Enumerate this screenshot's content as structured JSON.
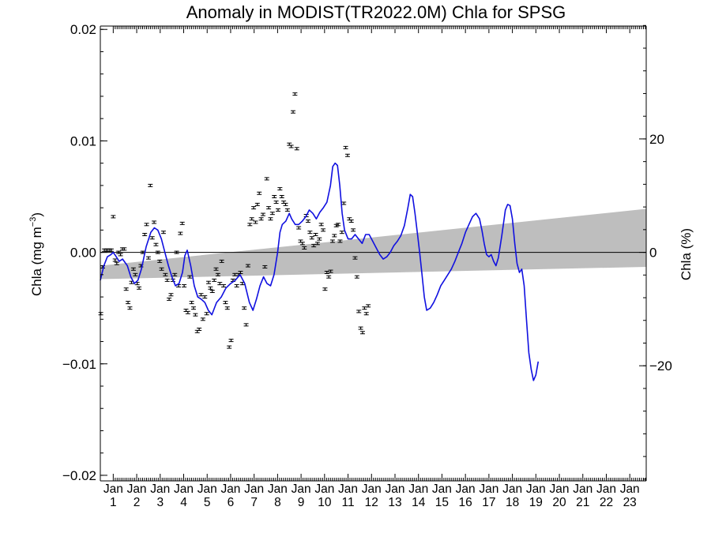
{
  "chart_data": {
    "type": "line",
    "title": "Anomaly in MODIST(TR2022.0M) Chla for SPSG",
    "ylabel_left": "Chla (mg m",
    "ylabel_left_sup": "−3",
    "ylabel_left_close": ")",
    "ylabel_right": "Chla (%)",
    "ylim": [
      -0.0205,
      0.0203
    ],
    "xlim": [
      0.45,
      23.7
    ],
    "right_ylim_percent": [
      -40.3,
      39.9
    ],
    "left_ticks": [
      {
        "v": 0.02,
        "label": "0.02"
      },
      {
        "v": 0.01,
        "label": "0.01"
      },
      {
        "v": 0.0,
        "label": "0.00"
      },
      {
        "v": -0.01,
        "label": "−0.01"
      },
      {
        "v": -0.02,
        "label": "−0.02"
      }
    ],
    "right_ticks": [
      {
        "v": 20,
        "label": "20"
      },
      {
        "v": 0,
        "label": "0"
      },
      {
        "v": -20,
        "label": "−20"
      }
    ],
    "x_month_label": "Jan",
    "x_year_labels": [
      "1",
      "2",
      "3",
      "4",
      "5",
      "6",
      "7",
      "8",
      "9",
      "10",
      "11",
      "12",
      "13",
      "14",
      "15",
      "16",
      "17",
      "18",
      "19",
      "20",
      "21",
      "22",
      "23"
    ],
    "zero_line": 0.0,
    "trend_band": {
      "x0": 0.45,
      "x1": 23.7,
      "lower0": -0.0024,
      "upper0": -0.0012,
      "lower1": -0.0013,
      "upper1": 0.0039
    },
    "colors": {
      "smooth_line": "#1010e0",
      "band": "#bebebe",
      "points": "#000000",
      "axes": "#000000"
    },
    "series": [
      {
        "kind": "smoothed",
        "points": [
          [
            0.45,
            -0.0025
          ],
          [
            0.6,
            -0.0012
          ],
          [
            0.75,
            -0.0004
          ],
          [
            0.9,
            -0.0002
          ],
          [
            1.0,
            0.0
          ],
          [
            1.1,
            -0.0003
          ],
          [
            1.25,
            -0.0008
          ],
          [
            1.4,
            -0.0006
          ],
          [
            1.6,
            -0.0012
          ],
          [
            1.75,
            -0.0022
          ],
          [
            1.9,
            -0.0028
          ],
          [
            2.05,
            -0.0025
          ],
          [
            2.2,
            -0.0015
          ],
          [
            2.4,
            0.0005
          ],
          [
            2.6,
            0.0018
          ],
          [
            2.75,
            0.0022
          ],
          [
            2.9,
            0.002
          ],
          [
            3.05,
            0.0012
          ],
          [
            3.2,
            0.0
          ],
          [
            3.35,
            -0.0012
          ],
          [
            3.5,
            -0.0022
          ],
          [
            3.65,
            -0.003
          ],
          [
            3.8,
            -0.0028
          ],
          [
            3.95,
            -0.0018
          ],
          [
            4.05,
            -0.0003
          ],
          [
            4.15,
            0.0002
          ],
          [
            4.3,
            -0.0012
          ],
          [
            4.45,
            -0.003
          ],
          [
            4.6,
            -0.004
          ],
          [
            4.75,
            -0.0042
          ],
          [
            4.9,
            -0.0045
          ],
          [
            5.05,
            -0.0052
          ],
          [
            5.2,
            -0.0056
          ],
          [
            5.4,
            -0.0045
          ],
          [
            5.6,
            -0.004
          ],
          [
            5.8,
            -0.0032
          ],
          [
            6.0,
            -0.0028
          ],
          [
            6.2,
            -0.0025
          ],
          [
            6.4,
            -0.002
          ],
          [
            6.6,
            -0.0028
          ],
          [
            6.8,
            -0.0045
          ],
          [
            6.95,
            -0.0052
          ],
          [
            7.1,
            -0.0042
          ],
          [
            7.25,
            -0.003
          ],
          [
            7.4,
            -0.0022
          ],
          [
            7.55,
            -0.0028
          ],
          [
            7.7,
            -0.003
          ],
          [
            7.85,
            -0.002
          ],
          [
            8.0,
            0.0
          ],
          [
            8.1,
            0.0018
          ],
          [
            8.2,
            0.0025
          ],
          [
            8.35,
            0.0028
          ],
          [
            8.5,
            0.0035
          ],
          [
            8.6,
            0.003
          ],
          [
            8.75,
            0.0025
          ],
          [
            8.9,
            0.0025
          ],
          [
            9.05,
            0.0028
          ],
          [
            9.2,
            0.0032
          ],
          [
            9.35,
            0.0038
          ],
          [
            9.5,
            0.0035
          ],
          [
            9.65,
            0.003
          ],
          [
            9.8,
            0.0036
          ],
          [
            9.95,
            0.004
          ],
          [
            10.1,
            0.0045
          ],
          [
            10.25,
            0.006
          ],
          [
            10.35,
            0.0077
          ],
          [
            10.45,
            0.008
          ],
          [
            10.55,
            0.0078
          ],
          [
            10.65,
            0.006
          ],
          [
            10.75,
            0.0035
          ],
          [
            10.85,
            0.002
          ],
          [
            11.0,
            0.0012
          ],
          [
            11.15,
            0.0012
          ],
          [
            11.3,
            0.0016
          ],
          [
            11.45,
            0.0012
          ],
          [
            11.6,
            0.0008
          ],
          [
            11.75,
            0.0016
          ],
          [
            11.9,
            0.0016
          ],
          [
            12.05,
            0.001
          ],
          [
            12.2,
            0.0004
          ],
          [
            12.35,
            -0.0002
          ],
          [
            12.5,
            -0.0006
          ],
          [
            12.65,
            -0.0004
          ],
          [
            12.8,
            0.0
          ],
          [
            12.95,
            0.0006
          ],
          [
            13.1,
            0.001
          ],
          [
            13.25,
            0.0015
          ],
          [
            13.4,
            0.0024
          ],
          [
            13.55,
            0.004
          ],
          [
            13.65,
            0.0052
          ],
          [
            13.75,
            0.005
          ],
          [
            13.85,
            0.0035
          ],
          [
            13.95,
            0.0018
          ],
          [
            14.05,
            0.0
          ],
          [
            14.15,
            -0.002
          ],
          [
            14.25,
            -0.004
          ],
          [
            14.35,
            -0.0052
          ],
          [
            14.5,
            -0.005
          ],
          [
            14.65,
            -0.0045
          ],
          [
            14.8,
            -0.0038
          ],
          [
            14.95,
            -0.003
          ],
          [
            15.1,
            -0.0025
          ],
          [
            15.25,
            -0.002
          ],
          [
            15.4,
            -0.0015
          ],
          [
            15.55,
            -0.0008
          ],
          [
            15.7,
            0.0
          ],
          [
            15.85,
            0.0008
          ],
          [
            16.0,
            0.0018
          ],
          [
            16.15,
            0.0025
          ],
          [
            16.3,
            0.0032
          ],
          [
            16.45,
            0.0035
          ],
          [
            16.6,
            0.003
          ],
          [
            16.7,
            0.002
          ],
          [
            16.8,
            0.0008
          ],
          [
            16.9,
            -0.0002
          ],
          [
            17.0,
            -0.0004
          ],
          [
            17.1,
            -0.0002
          ],
          [
            17.2,
            -0.0008
          ],
          [
            17.3,
            -0.0012
          ],
          [
            17.4,
            -0.0005
          ],
          [
            17.55,
            0.0015
          ],
          [
            17.7,
            0.0038
          ],
          [
            17.8,
            0.0043
          ],
          [
            17.9,
            0.0042
          ],
          [
            18.0,
            0.003
          ],
          [
            18.1,
            0.0008
          ],
          [
            18.2,
            -0.001
          ],
          [
            18.3,
            -0.0018
          ],
          [
            18.4,
            -0.0015
          ],
          [
            18.5,
            -0.003
          ],
          [
            18.6,
            -0.006
          ],
          [
            18.7,
            -0.009
          ],
          [
            18.8,
            -0.0105
          ],
          [
            18.9,
            -0.0115
          ],
          [
            19.0,
            -0.011
          ],
          [
            19.1,
            -0.0098
          ]
        ]
      },
      {
        "kind": "monthly_points",
        "points": [
          [
            0.47,
            -0.0055
          ],
          [
            0.55,
            -0.0013
          ],
          [
            0.62,
            0.0002
          ],
          [
            0.7,
            0.0002
          ],
          [
            0.77,
            0.0002
          ],
          [
            0.85,
            0.0002
          ],
          [
            0.92,
            0.0002
          ],
          [
            1.0,
            0.0032
          ],
          [
            1.08,
            -0.0007
          ],
          [
            1.15,
            -0.001
          ],
          [
            1.23,
            0.0
          ],
          [
            1.31,
            -0.0002
          ],
          [
            1.39,
            0.0003
          ],
          [
            1.47,
            0.0003
          ],
          [
            1.55,
            -0.0033
          ],
          [
            1.63,
            -0.0045
          ],
          [
            1.71,
            -0.005
          ],
          [
            1.78,
            -0.0027
          ],
          [
            1.86,
            -0.0015
          ],
          [
            1.94,
            -0.002
          ],
          [
            2.02,
            -0.0028
          ],
          [
            2.1,
            -0.0032
          ],
          [
            2.18,
            -0.0012
          ],
          [
            2.26,
            0.0
          ],
          [
            2.34,
            0.0016
          ],
          [
            2.42,
            0.0025
          ],
          [
            2.5,
            -0.0005
          ],
          [
            2.58,
            0.006
          ],
          [
            2.66,
            0.0013
          ],
          [
            2.74,
            0.0027
          ],
          [
            2.82,
            0.0007
          ],
          [
            2.9,
            0.0
          ],
          [
            2.98,
            -0.0008
          ],
          [
            3.06,
            -0.0015
          ],
          [
            3.14,
            0.0018
          ],
          [
            3.22,
            -0.002
          ],
          [
            3.3,
            -0.0025
          ],
          [
            3.38,
            -0.0042
          ],
          [
            3.46,
            -0.0038
          ],
          [
            3.54,
            -0.0025
          ],
          [
            3.62,
            -0.002
          ],
          [
            3.7,
            0.0
          ],
          [
            3.78,
            -0.003
          ],
          [
            3.86,
            0.0017
          ],
          [
            3.94,
            0.0026
          ],
          [
            4.02,
            -0.003
          ],
          [
            4.1,
            -0.0052
          ],
          [
            4.18,
            -0.0054
          ],
          [
            4.26,
            -0.0022
          ],
          [
            4.34,
            -0.0045
          ],
          [
            4.42,
            -0.005
          ],
          [
            4.5,
            -0.0056
          ],
          [
            4.58,
            -0.0071
          ],
          [
            4.66,
            -0.0069
          ],
          [
            4.74,
            -0.0038
          ],
          [
            4.82,
            -0.006
          ],
          [
            4.9,
            -0.004
          ],
          [
            4.98,
            -0.0055
          ],
          [
            5.06,
            -0.0027
          ],
          [
            5.14,
            -0.0032
          ],
          [
            5.22,
            -0.0035
          ],
          [
            5.3,
            -0.0025
          ],
          [
            5.38,
            -0.0015
          ],
          [
            5.46,
            -0.002
          ],
          [
            5.54,
            -0.0028
          ],
          [
            5.62,
            -0.0008
          ],
          [
            5.7,
            -0.003
          ],
          [
            5.78,
            -0.0045
          ],
          [
            5.86,
            -0.005
          ],
          [
            5.94,
            -0.0085
          ],
          [
            6.02,
            -0.0079
          ],
          [
            6.1,
            -0.0025
          ],
          [
            6.18,
            -0.002
          ],
          [
            6.26,
            -0.003
          ],
          [
            6.34,
            -0.002
          ],
          [
            6.42,
            -0.0018
          ],
          [
            6.5,
            -0.0028
          ],
          [
            6.58,
            -0.005
          ],
          [
            6.66,
            -0.0065
          ],
          [
            6.74,
            -0.0012
          ],
          [
            6.82,
            0.0025
          ],
          [
            6.9,
            0.003
          ],
          [
            6.98,
            0.004
          ],
          [
            7.06,
            0.0027
          ],
          [
            7.14,
            0.0043
          ],
          [
            7.22,
            0.0053
          ],
          [
            7.3,
            0.003
          ],
          [
            7.38,
            0.0034
          ],
          [
            7.46,
            -0.0013
          ],
          [
            7.54,
            0.0066
          ],
          [
            7.62,
            0.004
          ],
          [
            7.7,
            0.003
          ],
          [
            7.78,
            0.0035
          ],
          [
            7.86,
            0.005
          ],
          [
            7.94,
            0.0045
          ],
          [
            8.02,
            0.0038
          ],
          [
            8.1,
            0.0057
          ],
          [
            8.18,
            0.005
          ],
          [
            8.26,
            0.0045
          ],
          [
            8.34,
            0.0043
          ],
          [
            8.42,
            0.0038
          ],
          [
            8.5,
            0.0097
          ],
          [
            8.58,
            0.0095
          ],
          [
            8.66,
            0.0126
          ],
          [
            8.74,
            0.0142
          ],
          [
            8.82,
            0.0093
          ],
          [
            8.9,
            0.0022
          ],
          [
            8.98,
            0.001
          ],
          [
            9.06,
            0.0008
          ],
          [
            9.14,
            0.0004
          ],
          [
            9.22,
            0.0033
          ],
          [
            9.3,
            0.0028
          ],
          [
            9.38,
            0.0018
          ],
          [
            9.46,
            0.0013
          ],
          [
            9.54,
            0.0006
          ],
          [
            9.62,
            0.0016
          ],
          [
            9.7,
            0.0008
          ],
          [
            9.78,
            0.0012
          ],
          [
            9.86,
            0.0025
          ],
          [
            9.94,
            0.002
          ],
          [
            10.02,
            -0.0033
          ],
          [
            10.1,
            -0.0018
          ],
          [
            10.18,
            -0.0022
          ],
          [
            10.26,
            -0.0017
          ],
          [
            10.34,
            0.001
          ],
          [
            10.42,
            0.0015
          ],
          [
            10.5,
            0.0024
          ],
          [
            10.58,
            0.0025
          ],
          [
            10.66,
            0.001
          ],
          [
            10.74,
            0.0018
          ],
          [
            10.82,
            0.0044
          ],
          [
            10.9,
            0.0094
          ],
          [
            10.98,
            0.0087
          ],
          [
            11.06,
            0.003
          ],
          [
            11.14,
            0.0028
          ],
          [
            11.22,
            0.002
          ],
          [
            11.3,
            -0.0005
          ],
          [
            11.38,
            -0.0022
          ],
          [
            11.46,
            -0.0053
          ],
          [
            11.54,
            -0.0068
          ],
          [
            11.62,
            -0.0072
          ],
          [
            11.7,
            -0.005
          ],
          [
            11.78,
            -0.0055
          ],
          [
            11.86,
            -0.0048
          ]
        ]
      }
    ]
  }
}
